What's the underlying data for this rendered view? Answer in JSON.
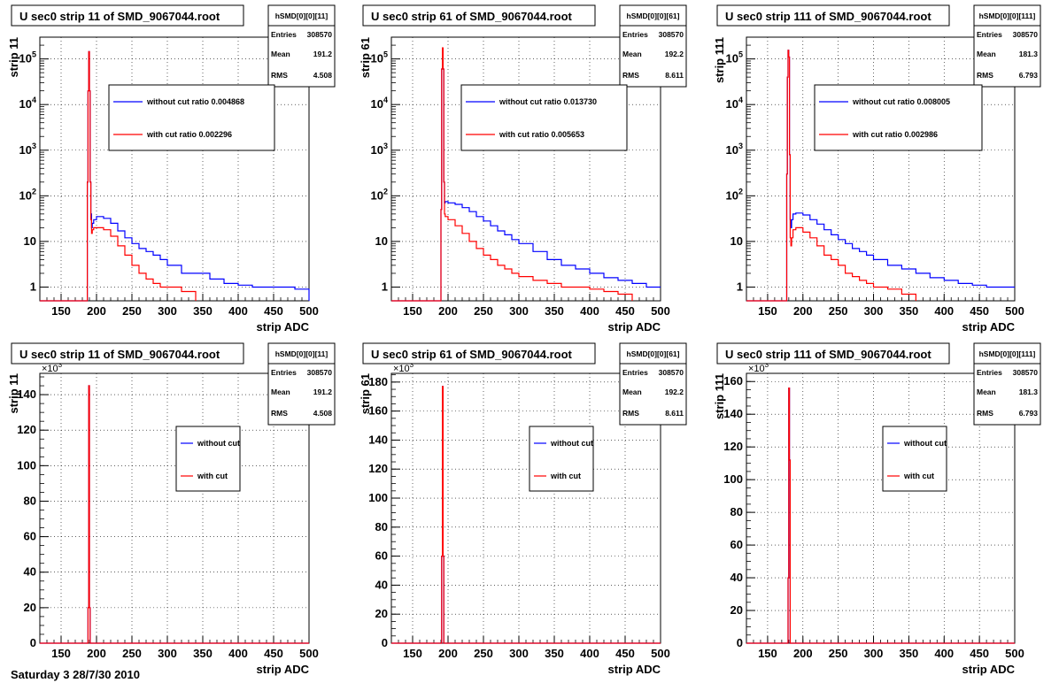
{
  "footer_text": "Saturday  3 28/7/30 2010",
  "chart_data": [
    {
      "type": "line",
      "log_y": true,
      "title": "U sec0 strip 11 of SMD_9067044.root",
      "xlabel": "strip ADC",
      "ylabel": "strip 11",
      "xlim": [
        120,
        500
      ],
      "ylim": [
        0.5,
        300000
      ],
      "x_ticks": [
        150,
        200,
        250,
        300,
        350,
        400,
        450,
        500
      ],
      "y_ticks": [
        {
          "v": 1,
          "t": "1"
        },
        {
          "v": 10,
          "t": "10"
        },
        {
          "v": 100,
          "t": "10^2"
        },
        {
          "v": 1000,
          "t": "10^3"
        },
        {
          "v": 10000,
          "t": "10^4"
        },
        {
          "v": 100000,
          "t": "10^5"
        }
      ],
      "stats": {
        "name": "hSMD[0][0][11]",
        "entries": "308570",
        "mean": "191.2",
        "rms": "4.508"
      },
      "legend": [
        "without cut ratio 0.004868",
        "with cut ratio 0.002296"
      ],
      "colors": {
        "without": "#0000ff",
        "with": "#ff0000"
      },
      "series": [
        {
          "name": "without cut ratio 0.004868",
          "x": [
            120,
            186,
            187,
            188,
            189,
            190,
            191,
            192,
            193,
            194,
            196,
            200,
            210,
            220,
            230,
            240,
            250,
            260,
            270,
            280,
            290,
            300,
            320,
            340,
            360,
            380,
            400,
            420,
            440,
            460,
            480,
            500
          ],
          "y": [
            0.5,
            0.5,
            200,
            20000,
            145000,
            20000,
            200,
            40,
            20,
            25,
            30,
            35,
            32,
            25,
            17,
            12,
            9,
            7,
            6,
            5,
            4,
            3,
            2,
            2,
            1.5,
            1.2,
            1.1,
            1,
            1,
            1,
            0.9,
            0.5
          ]
        },
        {
          "name": "with cut ratio 0.002296",
          "x": [
            120,
            186,
            187,
            188,
            189,
            190,
            191,
            192,
            193,
            194,
            196,
            200,
            210,
            220,
            230,
            240,
            250,
            260,
            270,
            280,
            290,
            300,
            320,
            340
          ],
          "y": [
            0.5,
            0.5,
            200,
            20000,
            145000,
            20000,
            200,
            30,
            15,
            18,
            20,
            20,
            18,
            13,
            8,
            5,
            3,
            2,
            1.5,
            1.2,
            1,
            1,
            0.8,
            0.5
          ]
        }
      ]
    },
    {
      "type": "line",
      "log_y": true,
      "title": "U sec0 strip 61 of SMD_9067044.root",
      "xlabel": "strip ADC",
      "ylabel": "strip 61",
      "xlim": [
        120,
        500
      ],
      "ylim": [
        0.5,
        300000
      ],
      "x_ticks": [
        150,
        200,
        250,
        300,
        350,
        400,
        450,
        500
      ],
      "y_ticks": [
        {
          "v": 1,
          "t": "1"
        },
        {
          "v": 10,
          "t": "10"
        },
        {
          "v": 100,
          "t": "10^2"
        },
        {
          "v": 1000,
          "t": "10^3"
        },
        {
          "v": 10000,
          "t": "10^4"
        },
        {
          "v": 100000,
          "t": "10^5"
        }
      ],
      "stats": {
        "name": "hSMD[0][0][61]",
        "entries": "308570",
        "mean": "192.2",
        "rms": "8.611"
      },
      "legend": [
        "without cut ratio 0.013730",
        "with cut ratio 0.005653"
      ],
      "colors": {
        "without": "#0000ff",
        "with": "#ff0000"
      },
      "series": [
        {
          "name": "without cut ratio 0.013730",
          "x": [
            120,
            189,
            190,
            191,
            192,
            193,
            194,
            195,
            196,
            200,
            210,
            220,
            230,
            240,
            250,
            260,
            270,
            280,
            290,
            300,
            320,
            340,
            360,
            380,
            400,
            420,
            440,
            460,
            480,
            500
          ],
          "y": [
            0.5,
            0.5,
            50,
            60000,
            175000,
            60000,
            200,
            70,
            75,
            70,
            65,
            55,
            45,
            35,
            28,
            22,
            17,
            14,
            11,
            9,
            6,
            4,
            3,
            2.5,
            2,
            1.6,
            1.4,
            1.2,
            1,
            1
          ]
        },
        {
          "name": "with cut ratio 0.005653",
          "x": [
            120,
            189,
            190,
            191,
            192,
            193,
            194,
            195,
            196,
            200,
            210,
            220,
            230,
            240,
            250,
            260,
            270,
            280,
            290,
            300,
            320,
            340,
            360,
            380,
            400,
            420,
            440,
            460
          ],
          "y": [
            0.5,
            0.5,
            50,
            60000,
            175000,
            60000,
            200,
            40,
            35,
            30,
            22,
            15,
            10,
            7,
            5,
            4,
            3,
            2.5,
            2,
            1.7,
            1.4,
            1.2,
            1,
            1,
            0.9,
            0.8,
            0.7,
            0.5
          ]
        }
      ]
    },
    {
      "type": "line",
      "log_y": true,
      "title": "U sec0 strip 111 of SMD_9067044.root",
      "xlabel": "strip ADC",
      "ylabel": "strip 111",
      "xlim": [
        120,
        500
      ],
      "ylim": [
        0.5,
        300000
      ],
      "x_ticks": [
        150,
        200,
        250,
        300,
        350,
        400,
        450,
        500
      ],
      "y_ticks": [
        {
          "v": 1,
          "t": "1"
        },
        {
          "v": 10,
          "t": "10"
        },
        {
          "v": 100,
          "t": "10^2"
        },
        {
          "v": 1000,
          "t": "10^3"
        },
        {
          "v": 10000,
          "t": "10^4"
        },
        {
          "v": 100000,
          "t": "10^5"
        }
      ],
      "stats": {
        "name": "hSMD[0][0][111]",
        "entries": "308570",
        "mean": "181.3",
        "rms": "6.793"
      },
      "legend": [
        "without cut ratio 0.008005",
        "with cut ratio 0.002986"
      ],
      "colors": {
        "without": "#0000ff",
        "with": "#ff0000"
      },
      "series": [
        {
          "name": "without cut ratio 0.008005",
          "x": [
            120,
            176,
            177,
            178,
            179,
            180,
            181,
            182,
            183,
            184,
            186,
            190,
            200,
            210,
            220,
            230,
            240,
            250,
            260,
            270,
            280,
            290,
            300,
            320,
            340,
            360,
            380,
            400,
            420,
            440,
            460,
            480,
            500
          ],
          "y": [
            0.5,
            0.5,
            300,
            40000,
            155000,
            110000,
            800,
            30,
            20,
            30,
            40,
            42,
            38,
            30,
            24,
            18,
            14,
            11,
            9,
            7,
            6,
            5,
            4,
            3,
            2.5,
            2,
            1.6,
            1.4,
            1.2,
            1.1,
            1,
            1,
            1
          ]
        },
        {
          "name": "with cut ratio 0.002986",
          "x": [
            120,
            176,
            177,
            178,
            179,
            180,
            181,
            182,
            183,
            184,
            186,
            190,
            200,
            210,
            220,
            230,
            240,
            250,
            260,
            270,
            280,
            290,
            300,
            320,
            340,
            360
          ],
          "y": [
            0.5,
            0.5,
            300,
            40000,
            155000,
            110000,
            800,
            12,
            8,
            12,
            18,
            20,
            16,
            12,
            8,
            5,
            4,
            3,
            2,
            1.7,
            1.4,
            1.2,
            1,
            0.9,
            0.7,
            0.5
          ]
        }
      ]
    },
    {
      "type": "line",
      "log_y": false,
      "title": "U sec0 strip 11 of SMD_9067044.root",
      "xlabel": "strip ADC",
      "ylabel": "strip 11",
      "xlim": [
        120,
        500
      ],
      "ylim": [
        0,
        152000
      ],
      "x_ticks": [
        150,
        200,
        250,
        300,
        350,
        400,
        450,
        500
      ],
      "y_ticks": [
        {
          "v": 0,
          "t": "0"
        },
        {
          "v": 20000,
          "t": "20"
        },
        {
          "v": 40000,
          "t": "40"
        },
        {
          "v": 60000,
          "t": "60"
        },
        {
          "v": 80000,
          "t": "80"
        },
        {
          "v": 100000,
          "t": "100"
        },
        {
          "v": 120000,
          "t": "120"
        },
        {
          "v": 140000,
          "t": "140"
        }
      ],
      "y_multiplier": "×10³",
      "stats": {
        "name": "hSMD[0][0][11]",
        "entries": "308570",
        "mean": "191.2",
        "rms": "4.508"
      },
      "legend": [
        "without cut",
        "with cut"
      ],
      "colors": {
        "without": "#0000ff",
        "with": "#ff0000"
      },
      "series": [
        {
          "name": "without cut",
          "x": [
            120,
            187,
            188,
            189,
            190,
            191,
            500
          ],
          "y": [
            0,
            0,
            20000,
            145000,
            20000,
            0,
            0
          ]
        },
        {
          "name": "with cut",
          "x": [
            120,
            187,
            188,
            189,
            190,
            191,
            500
          ],
          "y": [
            0,
            0,
            20000,
            145000,
            20000,
            0,
            0
          ]
        }
      ]
    },
    {
      "type": "line",
      "log_y": false,
      "title": "U sec0 strip 61 of SMD_9067044.root",
      "xlabel": "strip ADC",
      "ylabel": "strip 61",
      "xlim": [
        120,
        500
      ],
      "ylim": [
        0,
        186000
      ],
      "x_ticks": [
        150,
        200,
        250,
        300,
        350,
        400,
        450,
        500
      ],
      "y_ticks": [
        {
          "v": 0,
          "t": "0"
        },
        {
          "v": 20000,
          "t": "20"
        },
        {
          "v": 40000,
          "t": "40"
        },
        {
          "v": 60000,
          "t": "60"
        },
        {
          "v": 80000,
          "t": "80"
        },
        {
          "v": 100000,
          "t": "100"
        },
        {
          "v": 120000,
          "t": "120"
        },
        {
          "v": 140000,
          "t": "140"
        },
        {
          "v": 160000,
          "t": "160"
        },
        {
          "v": 180000,
          "t": "180"
        }
      ],
      "y_multiplier": "×10³",
      "stats": {
        "name": "hSMD[0][0][61]",
        "entries": "308570",
        "mean": "192.2",
        "rms": "8.611"
      },
      "legend": [
        "without cut",
        "with cut"
      ],
      "colors": {
        "without": "#0000ff",
        "with": "#ff0000"
      },
      "series": [
        {
          "name": "without cut",
          "x": [
            120,
            190,
            191,
            192,
            193,
            194,
            500
          ],
          "y": [
            0,
            0,
            60000,
            177000,
            60000,
            0,
            0
          ]
        },
        {
          "name": "with cut",
          "x": [
            120,
            190,
            191,
            192,
            193,
            194,
            500
          ],
          "y": [
            0,
            0,
            60000,
            177000,
            60000,
            0,
            0
          ]
        }
      ]
    },
    {
      "type": "line",
      "log_y": false,
      "title": "U sec0 strip 111 of SMD_9067044.root",
      "xlabel": "strip ADC",
      "ylabel": "strip 111",
      "xlim": [
        120,
        500
      ],
      "ylim": [
        0,
        165000
      ],
      "x_ticks": [
        150,
        200,
        250,
        300,
        350,
        400,
        450,
        500
      ],
      "y_ticks": [
        {
          "v": 0,
          "t": "0"
        },
        {
          "v": 20000,
          "t": "20"
        },
        {
          "v": 40000,
          "t": "40"
        },
        {
          "v": 60000,
          "t": "60"
        },
        {
          "v": 80000,
          "t": "80"
        },
        {
          "v": 100000,
          "t": "100"
        },
        {
          "v": 120000,
          "t": "120"
        },
        {
          "v": 140000,
          "t": "140"
        },
        {
          "v": 160000,
          "t": "160"
        }
      ],
      "y_multiplier": "×10³",
      "stats": {
        "name": "hSMD[0][0][111]",
        "entries": "308570",
        "mean": "181.3",
        "rms": "6.793"
      },
      "legend": [
        "without cut",
        "with cut"
      ],
      "colors": {
        "without": "#0000ff",
        "with": "#ff0000"
      },
      "series": [
        {
          "name": "without cut",
          "x": [
            120,
            178,
            179,
            180,
            181,
            182,
            500
          ],
          "y": [
            0,
            0,
            40000,
            156000,
            112000,
            0,
            0
          ]
        },
        {
          "name": "with cut",
          "x": [
            120,
            178,
            179,
            180,
            181,
            182,
            500
          ],
          "y": [
            0,
            0,
            40000,
            156000,
            112000,
            0,
            0
          ]
        }
      ]
    }
  ]
}
